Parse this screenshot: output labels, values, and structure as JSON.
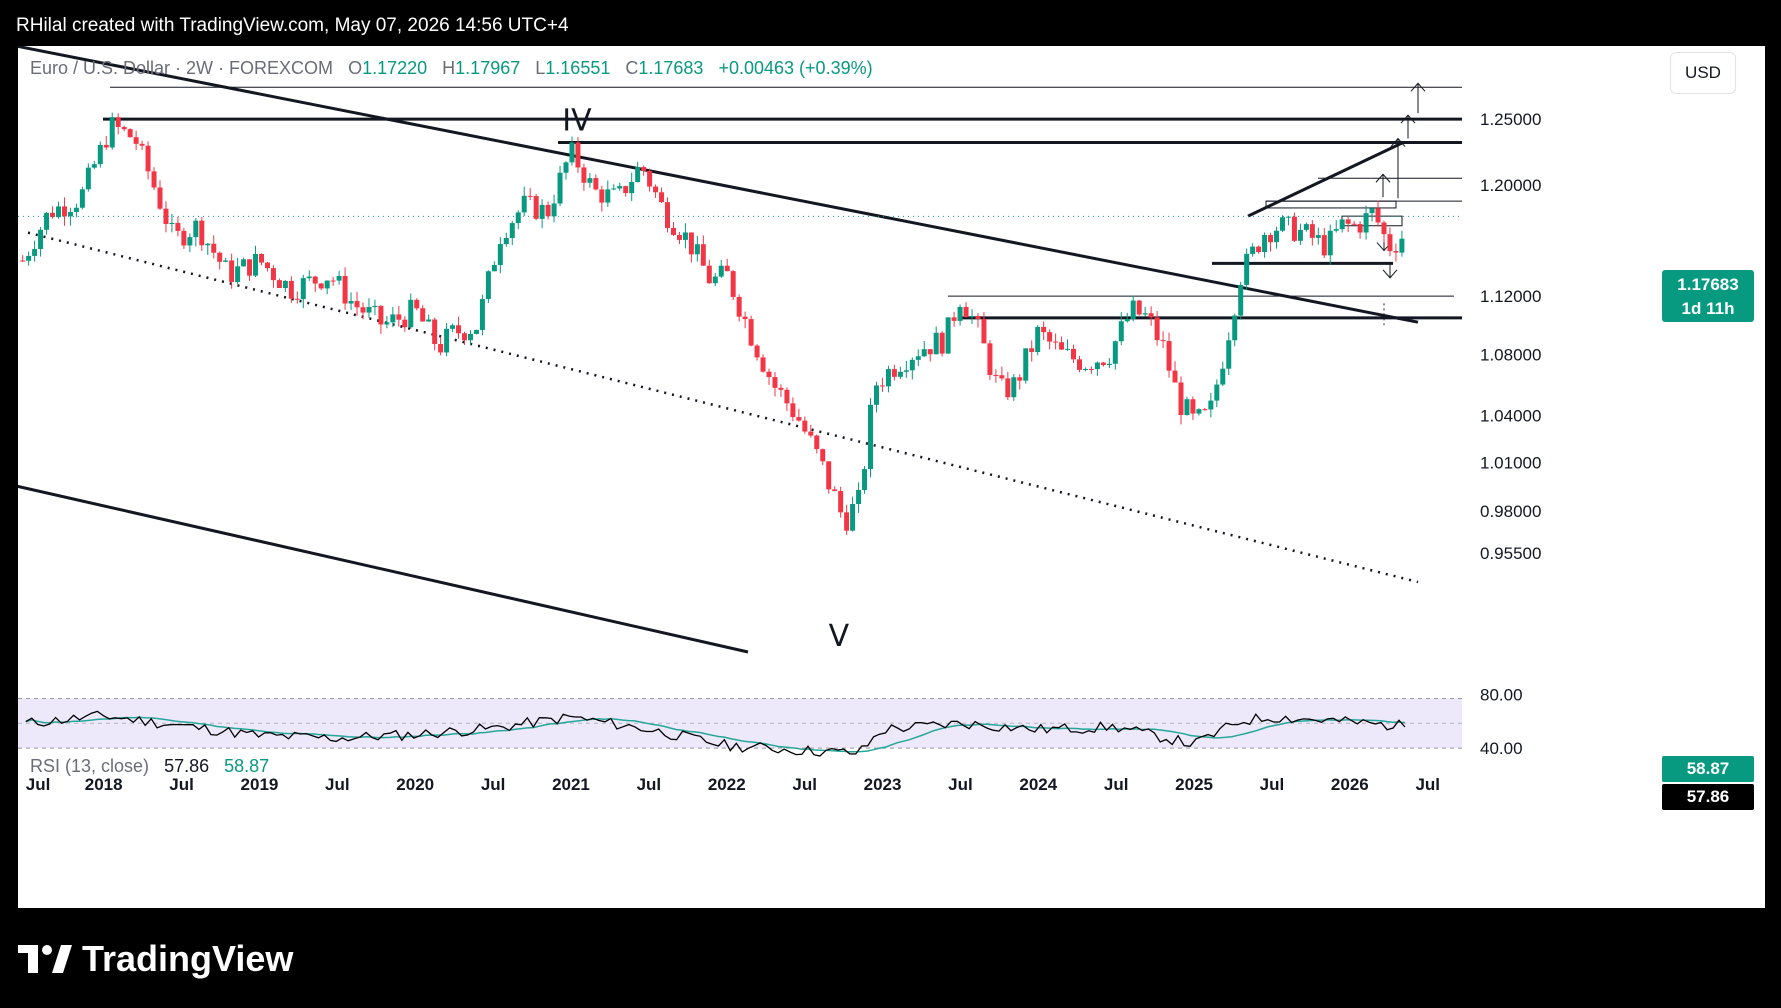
{
  "header": {
    "caption": "RHilal created with TradingView.com, May 07, 2026 14:56 UTC+4"
  },
  "legend": {
    "symbol": "Euro / U.S. Dollar · 2W · FOREXCOM",
    "open_label": "O",
    "open": "1.17220",
    "high_label": "H",
    "high": "1.17967",
    "low_label": "L",
    "low": "1.16551",
    "close_label": "C",
    "close": "1.17683",
    "change": "+0.00463 (+0.39%)"
  },
  "toolbar": {
    "currency": "USD"
  },
  "price_badge": {
    "price": "1.17683",
    "countdown": "1d 11h"
  },
  "rsi": {
    "title": "RSI (13, close)",
    "value": "57.86",
    "ma": "58.87",
    "badge_ma": "58.87",
    "badge_value": "57.86",
    "levels": [
      80,
      40
    ],
    "level_labels": [
      "80.00",
      "40.00"
    ],
    "colors": {
      "rsi": "#000000",
      "ma": "#26a69a",
      "band": "#ede9fb"
    }
  },
  "brand": {
    "name": "TradingView"
  },
  "colors": {
    "up": "#089981",
    "down": "#f23645",
    "lines": "#000000"
  },
  "chart_data": {
    "type": "candlestick",
    "title": "Euro / U.S. Dollar · 2W · FOREXCOM",
    "y_scale": "log",
    "ylim": [
      0.915,
      1.3
    ],
    "y_ticks": [
      0.955,
      0.98,
      1.01,
      1.04,
      1.08,
      1.12,
      1.2,
      1.25
    ],
    "y_tick_labels": [
      "0.95500",
      "0.98000",
      "1.01000",
      "1.04000",
      "1.08000",
      "1.12000",
      "1.20000",
      "1.25000"
    ],
    "time_axis": [
      {
        "t": 2017.5,
        "label": "Jul"
      },
      {
        "t": 2018.0,
        "label": "2018"
      },
      {
        "t": 2018.5,
        "label": "Jul"
      },
      {
        "t": 2019.0,
        "label": "2019"
      },
      {
        "t": 2019.5,
        "label": "Jul"
      },
      {
        "t": 2020.0,
        "label": "2020"
      },
      {
        "t": 2020.5,
        "label": "Jul"
      },
      {
        "t": 2021.0,
        "label": "2021"
      },
      {
        "t": 2021.5,
        "label": "Jul"
      },
      {
        "t": 2022.0,
        "label": "2022"
      },
      {
        "t": 2022.5,
        "label": "Jul"
      },
      {
        "t": 2023.0,
        "label": "2023"
      },
      {
        "t": 2023.5,
        "label": "Jul"
      },
      {
        "t": 2024.0,
        "label": "2024"
      },
      {
        "t": 2024.5,
        "label": "Jul"
      },
      {
        "t": 2025.0,
        "label": "2025"
      },
      {
        "t": 2025.5,
        "label": "Jul"
      },
      {
        "t": 2026.0,
        "label": "2026"
      },
      {
        "t": 2026.5,
        "label": "Jul"
      }
    ],
    "price_path": [
      [
        2017.48,
        1.145
      ],
      [
        2017.65,
        1.18
      ],
      [
        2017.85,
        1.19
      ],
      [
        2018.05,
        1.245
      ],
      [
        2018.2,
        1.235
      ],
      [
        2018.32,
        1.2
      ],
      [
        2018.45,
        1.16
      ],
      [
        2018.6,
        1.17
      ],
      [
        2018.8,
        1.135
      ],
      [
        2019.0,
        1.145
      ],
      [
        2019.2,
        1.125
      ],
      [
        2019.45,
        1.135
      ],
      [
        2019.6,
        1.115
      ],
      [
        2019.8,
        1.1
      ],
      [
        2020.0,
        1.11
      ],
      [
        2020.15,
        1.085
      ],
      [
        2020.25,
        1.095
      ],
      [
        2020.4,
        1.1
      ],
      [
        2020.55,
        1.165
      ],
      [
        2020.7,
        1.185
      ],
      [
        2020.85,
        1.18
      ],
      [
        2021.0,
        1.225
      ],
      [
        2021.15,
        1.195
      ],
      [
        2021.3,
        1.19
      ],
      [
        2021.45,
        1.215
      ],
      [
        2021.6,
        1.18
      ],
      [
        2021.75,
        1.16
      ],
      [
        2021.9,
        1.13
      ],
      [
        2022.0,
        1.135
      ],
      [
        2022.15,
        1.095
      ],
      [
        2022.3,
        1.06
      ],
      [
        2022.45,
        1.04
      ],
      [
        2022.6,
        1.01
      ],
      [
        2022.75,
        0.975
      ],
      [
        2022.85,
        0.985
      ],
      [
        2022.95,
        1.06
      ],
      [
        2023.1,
        1.075
      ],
      [
        2023.25,
        1.085
      ],
      [
        2023.4,
        1.09
      ],
      [
        2023.5,
        1.12
      ],
      [
        2023.6,
        1.1
      ],
      [
        2023.75,
        1.055
      ],
      [
        2023.85,
        1.06
      ],
      [
        2024.0,
        1.095
      ],
      [
        2024.15,
        1.08
      ],
      [
        2024.3,
        1.075
      ],
      [
        2024.45,
        1.08
      ],
      [
        2024.6,
        1.11
      ],
      [
        2024.7,
        1.105
      ],
      [
        2024.8,
        1.085
      ],
      [
        2024.9,
        1.05
      ],
      [
        2025.0,
        1.035
      ],
      [
        2025.1,
        1.04
      ],
      [
        2025.2,
        1.085
      ],
      [
        2025.3,
        1.135
      ],
      [
        2025.45,
        1.165
      ],
      [
        2025.55,
        1.17
      ],
      [
        2025.7,
        1.165
      ],
      [
        2025.85,
        1.155
      ],
      [
        2025.95,
        1.17
      ],
      [
        2026.05,
        1.17
      ],
      [
        2026.15,
        1.18
      ],
      [
        2026.25,
        1.155
      ],
      [
        2026.33,
        1.16
      ],
      [
        2026.36,
        1.1768
      ]
    ],
    "drawn_levels": [
      1.275,
      1.25,
      1.232,
      1.205,
      1.188,
      1.12,
      1.105
    ],
    "wave_labels": [
      "IV",
      "V"
    ],
    "last_price": 1.17683,
    "rsi_path": [
      [
        2017.5,
        60
      ],
      [
        2018.0,
        66
      ],
      [
        2018.5,
        58
      ],
      [
        2019.0,
        50
      ],
      [
        2019.5,
        48
      ],
      [
        2020.0,
        51
      ],
      [
        2020.5,
        56
      ],
      [
        2021.0,
        65
      ],
      [
        2021.5,
        55
      ],
      [
        2022.0,
        42
      ],
      [
        2022.5,
        38
      ],
      [
        2022.85,
        36
      ],
      [
        2023.0,
        55
      ],
      [
        2023.5,
        60
      ],
      [
        2024.0,
        55
      ],
      [
        2024.5,
        57
      ],
      [
        2025.0,
        43
      ],
      [
        2025.3,
        62
      ],
      [
        2025.5,
        65
      ],
      [
        2025.9,
        62
      ],
      [
        2026.2,
        59
      ],
      [
        2026.36,
        57.86
      ]
    ]
  }
}
